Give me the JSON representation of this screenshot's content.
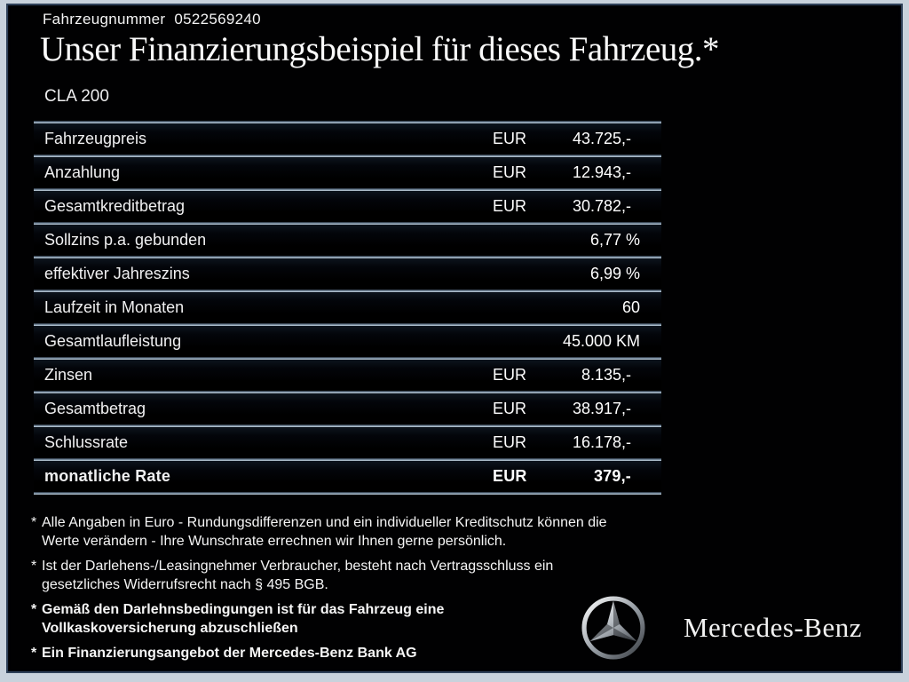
{
  "header": {
    "vehicle_number_label": "Fahrzeugnummer",
    "vehicle_number": "0522569240",
    "title": "Unser Finanzierungsbeispiel für dieses Fahrzeug.*",
    "model": "CLA 200"
  },
  "finance_table": {
    "rows": [
      {
        "label": "Fahrzeugpreis",
        "currency": "EUR",
        "value": "43.725,-",
        "bold": false
      },
      {
        "label": "Anzahlung",
        "currency": "EUR",
        "value": "12.943,-",
        "bold": false
      },
      {
        "label": "Gesamtkreditbetrag",
        "currency": "EUR",
        "value": "30.782,-",
        "bold": false
      },
      {
        "label": "Sollzins p.a. gebunden",
        "currency": "",
        "value": "6,77 %",
        "bold": false
      },
      {
        "label": "effektiver Jahreszins",
        "currency": "",
        "value": "6,99 %",
        "bold": false
      },
      {
        "label": "Laufzeit in Monaten",
        "currency": "",
        "value": "60",
        "bold": false
      },
      {
        "label": "Gesamtlaufleistung",
        "currency": "",
        "value": "45.000 KM",
        "bold": false
      },
      {
        "label": "Zinsen",
        "currency": "EUR",
        "value": "8.135,-",
        "bold": false
      },
      {
        "label": "Gesamtbetrag",
        "currency": "EUR",
        "value": "38.917,-",
        "bold": false
      },
      {
        "label": "Schlussrate",
        "currency": "EUR",
        "value": "16.178,-",
        "bold": false
      },
      {
        "label": "monatliche Rate",
        "currency": "EUR",
        "value": "379,-",
        "bold": true
      }
    ]
  },
  "footnotes": [
    {
      "marker": "*",
      "bold": false,
      "text": "Alle Angaben in Euro - Rundungsdifferenzen und ein individueller Kreditschutz können die\nWerte verändern - Ihre Wunschrate errechnen wir Ihnen gerne persönlich."
    },
    {
      "marker": "*",
      "bold": false,
      "text": "Ist der Darlehens-/Leasingnehmer Verbraucher, besteht nach Vertragsschluss ein\ngesetzliches Widerrufsrecht nach § 495 BGB."
    },
    {
      "marker": "*",
      "bold": true,
      "text": "Gemäß den Darlehnsbedingungen ist für das Fahrzeug eine\nVollkaskoversicherung abzuschließen"
    },
    {
      "marker": "*",
      "bold": true,
      "text": "Ein Finanzierungsangebot der Mercedes-Benz Bank AG"
    }
  ],
  "brand": {
    "logo_icon": "mercedes-star-icon",
    "wordmark": "Mercedes-Benz"
  },
  "colors": {
    "background": "#010102",
    "frame_outer": "#c8d2dc",
    "frame_border": "#2e4058",
    "divider_light": "#c6d4e0",
    "text": "#f2f2f2"
  }
}
